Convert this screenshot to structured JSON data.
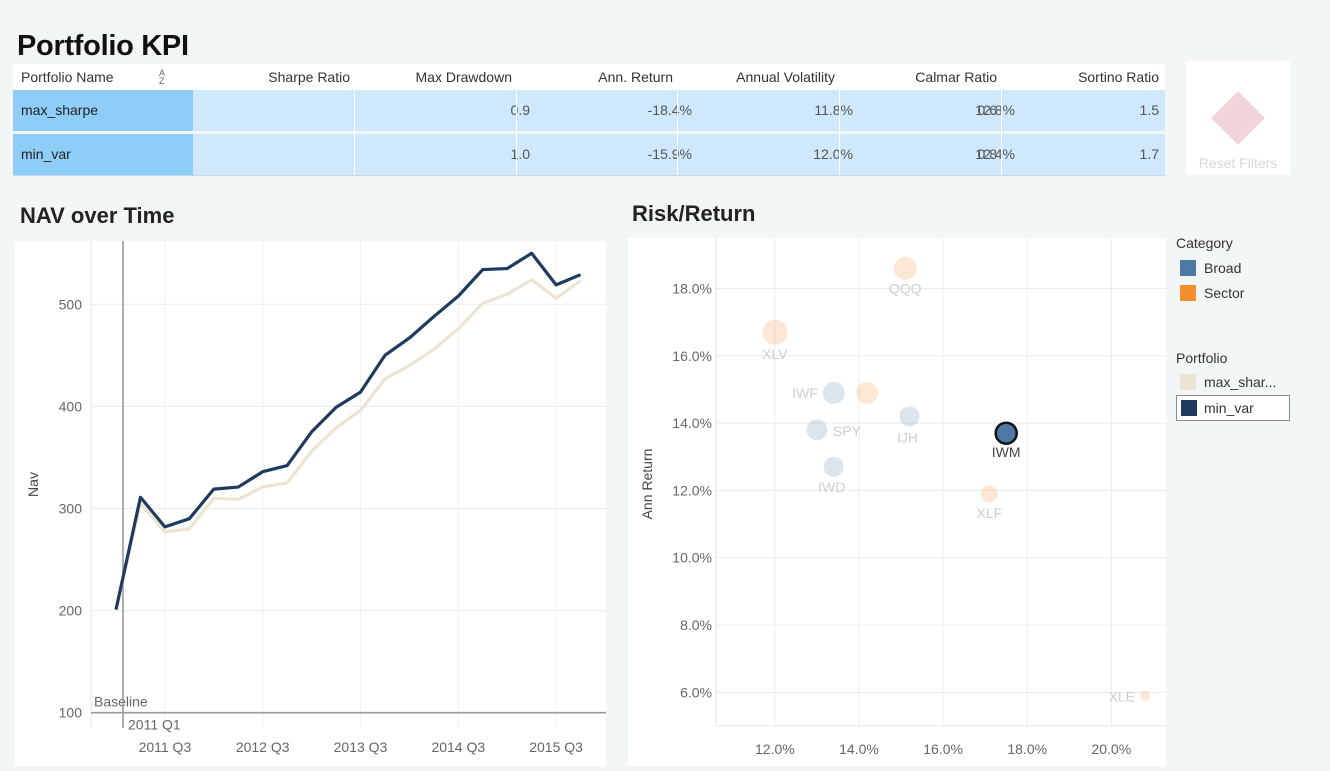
{
  "page_title": "Portfolio KPI",
  "kpi_table": {
    "columns": [
      "Portfolio Name",
      "Sharpe Ratio",
      "Max Drawdown",
      "Ann. Return",
      "Annual Volatility",
      "Calmar Ratio",
      "Sortino Ratio"
    ],
    "sort_icon": "sort-alpha-icon",
    "rows": [
      {
        "name": "max_sharpe",
        "sharpe": "0.9",
        "max_dd": "-18.4%",
        "ann_return": "11.8%",
        "ann_vol": "12.8%",
        "calmar": "0.6",
        "sortino": "1.5"
      },
      {
        "name": "min_var",
        "sharpe": "1.0",
        "max_dd": "-15.9%",
        "ann_return": "12.0%",
        "ann_vol": "12.4%",
        "calmar": "0.8",
        "sortino": "1.7"
      }
    ],
    "colors": {
      "name_cell": "#8dcdf8",
      "value_cell": "#cfe8fb"
    }
  },
  "reset_filters": {
    "label": "Reset Filters",
    "icon": "diamond-icon"
  },
  "nav_chart": {
    "title": "NAV over Time",
    "ylabel": "Nav",
    "baseline_label": "Baseline",
    "reference_label": "2011 Q1"
  },
  "risk_return": {
    "title": "Risk/Return",
    "ylabel": "Ann Return"
  },
  "legend": {
    "category_title": "Category",
    "categories": [
      {
        "label": "Broad",
        "color": "#4e79a7"
      },
      {
        "label": "Sector",
        "color": "#f28e2b"
      }
    ],
    "portfolio_title": "Portfolio",
    "portfolios": [
      {
        "label": "max_shar...",
        "color": "#ece4d2"
      },
      {
        "label": "min_var",
        "color": "#1f3a5f"
      }
    ]
  },
  "chart_data": [
    {
      "type": "line",
      "title": "NAV over Time",
      "xlabel": "",
      "ylabel": "Nav",
      "x_ticks": [
        "2011 Q3",
        "2012 Q3",
        "2013 Q3",
        "2014 Q3",
        "2015 Q3"
      ],
      "y_ticks": [
        100,
        200,
        300,
        400,
        500
      ],
      "ylim": [
        85,
        562
      ],
      "x": [
        "2011 Q1",
        "2011 Q2",
        "2011 Q3",
        "2011 Q4",
        "2012 Q1",
        "2012 Q2",
        "2012 Q3",
        "2012 Q4",
        "2013 Q1",
        "2013 Q2",
        "2013 Q3",
        "2013 Q4",
        "2014 Q1",
        "2014 Q2",
        "2014 Q3",
        "2014 Q4",
        "2015 Q1",
        "2015 Q2",
        "2015 Q3",
        "2015 Q4"
      ],
      "series": [
        {
          "name": "min_var",
          "color": "#1f3a5f",
          "values": [
            201,
            311,
            282,
            290,
            319,
            321,
            336,
            342,
            375,
            399,
            414,
            450,
            467,
            488,
            508,
            534,
            535,
            550,
            519,
            529
          ]
        },
        {
          "name": "max_sharpe",
          "color": "#ece4d2",
          "values": [
            201,
            305,
            277,
            280,
            310,
            309,
            321,
            325,
            356,
            379,
            396,
            427,
            440,
            456,
            476,
            501,
            510,
            524,
            506,
            523
          ]
        }
      ],
      "baseline": 100,
      "reference_line_x": "2011 Q1",
      "grid": true
    },
    {
      "type": "scatter",
      "title": "Risk/Return",
      "xlabel": "",
      "ylabel": "Ann Return",
      "x_ticks": [
        "12.0%",
        "14.0%",
        "16.0%",
        "18.0%",
        "20.0%"
      ],
      "y_ticks": [
        "6.0%",
        "8.0%",
        "10.0%",
        "12.0%",
        "14.0%",
        "16.0%",
        "18.0%"
      ],
      "xlim": [
        10.6,
        21.3
      ],
      "ylim": [
        5.0,
        19.5
      ],
      "points": [
        {
          "label": "QQQ",
          "x": 15.1,
          "y": 18.6,
          "category": "Sector",
          "color": "#f28e2b",
          "highlight": false
        },
        {
          "label": "XLV",
          "x": 12.0,
          "y": 16.7,
          "category": "Sector",
          "color": "#f28e2b",
          "highlight": false
        },
        {
          "label": "IWF",
          "x": 13.4,
          "y": 14.9,
          "category": "Broad",
          "color": "#4e79a7",
          "highlight": false
        },
        {
          "label": "",
          "x": 14.2,
          "y": 14.9,
          "category": "Sector",
          "color": "#f28e2b",
          "highlight": false
        },
        {
          "label": "IJH",
          "x": 15.2,
          "y": 14.2,
          "category": "Broad",
          "color": "#4e79a7",
          "highlight": false
        },
        {
          "label": "SPY",
          "x": 13.0,
          "y": 13.8,
          "category": "Broad",
          "color": "#4e79a7",
          "highlight": false
        },
        {
          "label": "IWD",
          "x": 13.4,
          "y": 12.7,
          "category": "Broad",
          "color": "#4e79a7",
          "highlight": false
        },
        {
          "label": "IWM",
          "x": 17.5,
          "y": 13.7,
          "category": "Broad",
          "color": "#4e79a7",
          "highlight": true
        },
        {
          "label": "XLF",
          "x": 17.1,
          "y": 11.9,
          "category": "Sector",
          "color": "#f28e2b",
          "highlight": false
        },
        {
          "label": "XLE",
          "x": 20.8,
          "y": 5.9,
          "category": "Sector",
          "color": "#f28e2b",
          "highlight": false
        }
      ],
      "grid": true
    }
  ]
}
